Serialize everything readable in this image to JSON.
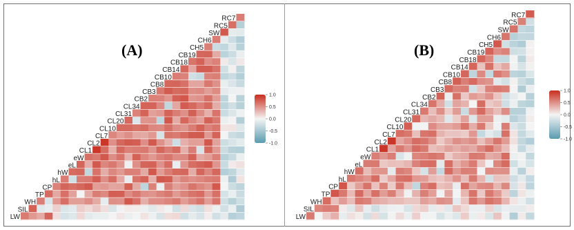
{
  "chart_data": [
    {
      "type": "heatmap",
      "panel_label": "(A)",
      "variables": [
        "LW",
        "SIL",
        "WH",
        "TP",
        "CP",
        "hL",
        "hW",
        "eL",
        "eW",
        "CL1",
        "CL2",
        "CL7",
        "CL10",
        "CL20",
        "CL31",
        "CL34",
        "CB2",
        "CB3",
        "CB8",
        "CB10",
        "CB14",
        "CB18",
        "CB19",
        "CH5",
        "CH6",
        "SW",
        "RC5",
        "RC7"
      ],
      "legend": {
        "ticks": [
          1.0,
          0.5,
          0.0,
          -0.5,
          -1.0
        ],
        "min": -1.0,
        "max": 1.0
      }
    },
    {
      "type": "heatmap",
      "panel_label": "(B)",
      "variables": [
        "LW",
        "SIL",
        "WH",
        "TP",
        "CP",
        "hL",
        "hW",
        "eL",
        "eW",
        "CL1",
        "CL2",
        "CL7",
        "CL10",
        "CL20",
        "CL31",
        "CL34",
        "CB2",
        "CB3",
        "CB8",
        "CB10",
        "CB14",
        "CB18",
        "CB19",
        "CH5",
        "CH6",
        "SW",
        "RC5",
        "RC7"
      ],
      "legend": {
        "ticks": [
          1.0,
          0.5,
          0.0,
          -0.5,
          -1.0
        ],
        "min": -1.0,
        "max": 1.0
      }
    }
  ],
  "colors": {
    "positive": "#c0392b",
    "neutral": "#f4f4f4",
    "negative": "#5a9bb0",
    "frame": "#6f6f6f"
  }
}
